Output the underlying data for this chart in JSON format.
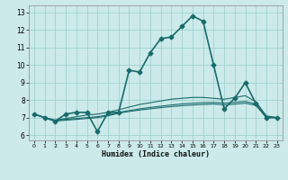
{
  "xlabel": "Humidex (Indice chaleur)",
  "background_color": "#cceaea",
  "grid_color": "#99cccc",
  "line_color": "#1a6b6b",
  "xlim": [
    -0.5,
    23.5
  ],
  "ylim": [
    5.7,
    13.4
  ],
  "xticks": [
    0,
    1,
    2,
    3,
    4,
    5,
    6,
    7,
    8,
    9,
    10,
    11,
    12,
    13,
    14,
    15,
    16,
    17,
    18,
    19,
    20,
    21,
    22,
    23
  ],
  "yticks": [
    6,
    7,
    8,
    9,
    10,
    11,
    12,
    13
  ],
  "series": [
    {
      "x": [
        0,
        1,
        2,
        3,
        4,
        5,
        6,
        7,
        8,
        9,
        10,
        11,
        12,
        13,
        14,
        15,
        16,
        17,
        18,
        19,
        20,
        21,
        22,
        23
      ],
      "y": [
        7.2,
        7.0,
        6.8,
        7.2,
        7.3,
        7.3,
        6.2,
        7.3,
        7.3,
        9.7,
        9.6,
        10.7,
        11.5,
        11.6,
        12.2,
        12.8,
        12.5,
        10.0,
        7.5,
        8.1,
        9.0,
        7.8,
        7.0,
        7.0
      ],
      "marker": "D",
      "markersize": 2.5,
      "linewidth": 1.2,
      "zorder": 5
    },
    {
      "x": [
        0,
        1,
        2,
        3,
        4,
        5,
        6,
        7,
        8,
        9,
        10,
        11,
        12,
        13,
        14,
        15,
        16,
        17,
        18,
        19,
        20,
        21,
        22,
        23
      ],
      "y": [
        7.2,
        7.0,
        6.85,
        6.95,
        7.05,
        7.15,
        7.2,
        7.3,
        7.45,
        7.6,
        7.75,
        7.85,
        7.95,
        8.05,
        8.1,
        8.15,
        8.15,
        8.1,
        8.05,
        8.15,
        8.25,
        7.9,
        7.1,
        7.0
      ],
      "marker": null,
      "markersize": 0,
      "linewidth": 0.8,
      "zorder": 3
    },
    {
      "x": [
        0,
        1,
        2,
        3,
        4,
        5,
        6,
        7,
        8,
        9,
        10,
        11,
        12,
        13,
        14,
        15,
        16,
        17,
        18,
        19,
        20,
        21,
        22,
        23
      ],
      "y": [
        7.2,
        7.0,
        6.85,
        6.9,
        6.95,
        7.0,
        7.05,
        7.15,
        7.3,
        7.4,
        7.5,
        7.58,
        7.65,
        7.72,
        7.78,
        7.82,
        7.85,
        7.87,
        7.82,
        7.87,
        7.92,
        7.78,
        7.05,
        7.0
      ],
      "marker": null,
      "markersize": 0,
      "linewidth": 0.8,
      "zorder": 3
    },
    {
      "x": [
        0,
        1,
        2,
        3,
        4,
        5,
        6,
        7,
        8,
        9,
        10,
        11,
        12,
        13,
        14,
        15,
        16,
        17,
        18,
        19,
        20,
        21,
        22,
        23
      ],
      "y": [
        7.2,
        7.0,
        6.8,
        6.85,
        6.9,
        6.95,
        7.0,
        7.1,
        7.25,
        7.35,
        7.43,
        7.5,
        7.57,
        7.63,
        7.68,
        7.72,
        7.75,
        7.78,
        7.72,
        7.77,
        7.82,
        7.7,
        7.0,
        7.0
      ],
      "marker": null,
      "markersize": 0,
      "linewidth": 0.8,
      "zorder": 3
    }
  ]
}
